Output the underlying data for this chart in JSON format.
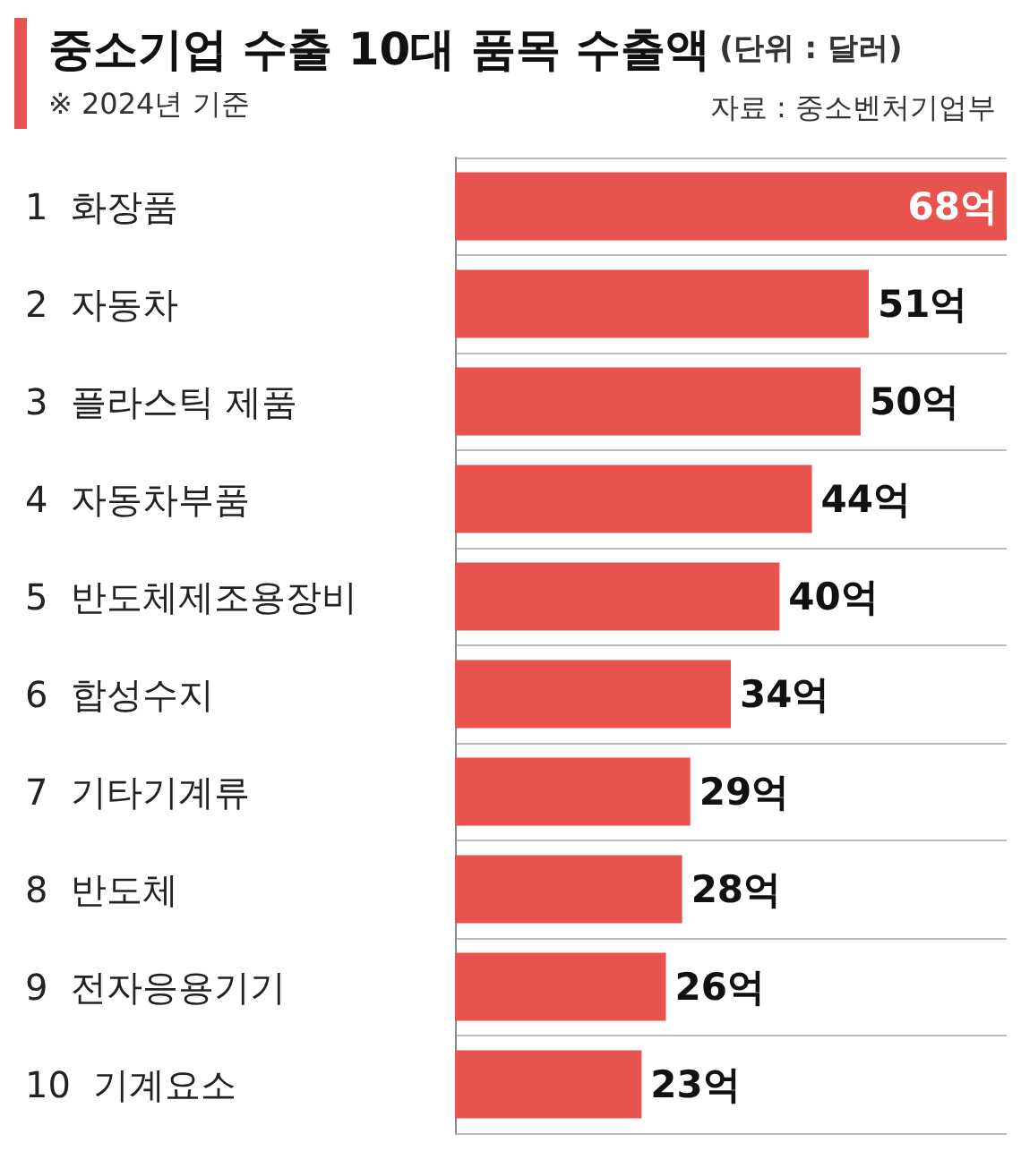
{
  "chart_data": {
    "type": "bar",
    "orientation": "horizontal",
    "title": "중소기업 수출 10대 품목 수출액",
    "subtitle": "※ 2024년 기준",
    "annotations": [
      "(단위 : 달러)",
      "자료 : 중소벤처기업부"
    ],
    "categories": [
      "1  화장품",
      "2  자동차",
      "3  플라스틱 제품",
      "4  자동차부품",
      "5  반도체제조용장비",
      "6  합성수지",
      "7  기타기계류",
      "8  반도체",
      "9  전자응용기기",
      "10  기계요소"
    ],
    "values": [
      68,
      51,
      50,
      44,
      40,
      34,
      29,
      28,
      26,
      23
    ],
    "value_labels": [
      "68억",
      "51억",
      "50억",
      "44억",
      "40억",
      "34억",
      "29억",
      "28억",
      "26억",
      "23억"
    ],
    "color": "#e8534f",
    "grid": "y"
  }
}
